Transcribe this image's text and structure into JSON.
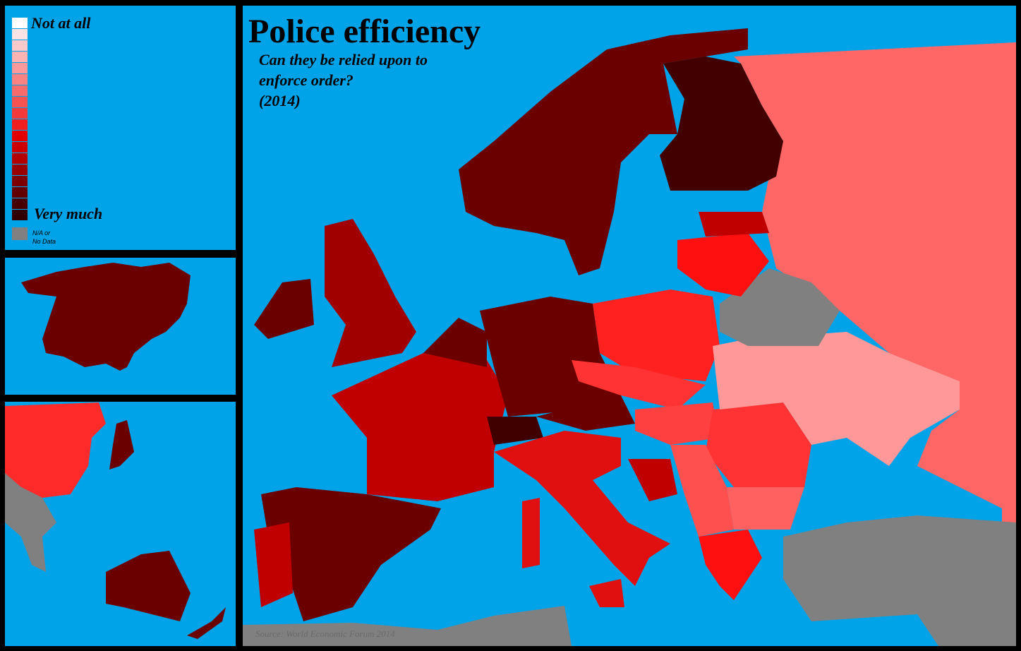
{
  "title": "Police efficiency",
  "subtitle_lines": [
    "Can they be relied upon to",
    "enforce order?",
    "(2014)"
  ],
  "source": "Source: World Economic Forum 2014",
  "legend": {
    "low_label": "Not at all",
    "high_label": "Very much",
    "na_label_lines": [
      "N/A or",
      "No Data"
    ],
    "colors": [
      "#ffffff",
      "#fde3e3",
      "#fccaca",
      "#fbb3b3",
      "#fa9a9a",
      "#f98383",
      "#f76b6b",
      "#f55252",
      "#f33a3a",
      "#f02020",
      "#e00000",
      "#cc0000",
      "#b30000",
      "#990000",
      "#7d0000",
      "#620000",
      "#470000",
      "#300000"
    ],
    "na_color": "#808080"
  }
}
